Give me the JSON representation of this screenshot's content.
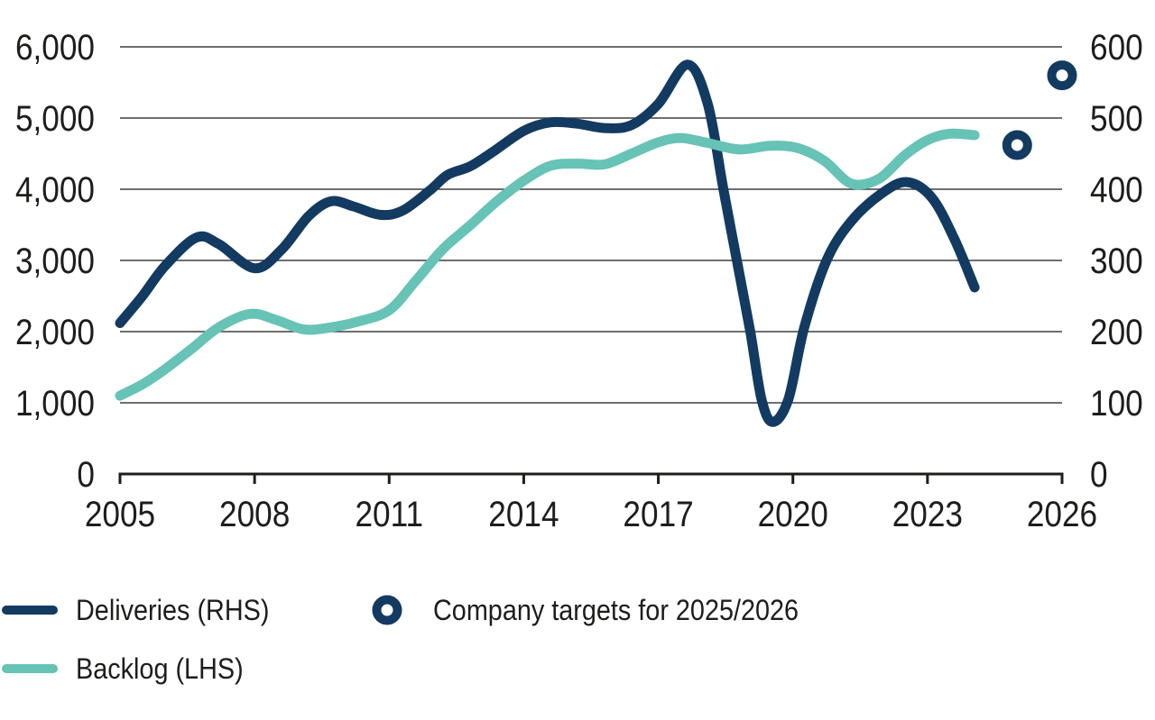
{
  "chart_data": {
    "type": "line",
    "title": "",
    "x_axis": {
      "min": 2005,
      "max": 2026,
      "ticks": [
        2005,
        2008,
        2011,
        2014,
        2017,
        2020,
        2023,
        2026
      ],
      "tick_labels": [
        "2005",
        "2008",
        "2011",
        "2014",
        "2017",
        "2020",
        "2023",
        "2026"
      ]
    },
    "left_axis": {
      "min": 0,
      "max": 6000,
      "tick_values": [
        0,
        1000,
        2000,
        3000,
        4000,
        5000,
        6000
      ],
      "tick_labels": [
        "0",
        "1,000",
        "2,000",
        "3,000",
        "4,000",
        "5,000",
        "6,000"
      ]
    },
    "right_axis": {
      "min": 0,
      "max": 600,
      "tick_values": [
        0,
        100,
        200,
        300,
        400,
        500,
        600
      ],
      "tick_labels": [
        "0",
        "100",
        "200",
        "300",
        "400",
        "500",
        "600"
      ]
    },
    "grid": true,
    "legend_position": "bottom-left",
    "series": [
      {
        "name": "Deliveries (RHS)",
        "axis": "right",
        "color": "#133a61",
        "points": [
          [
            2005,
            212
          ],
          [
            2005.5,
            250
          ],
          [
            2006,
            292
          ],
          [
            2006.7,
            332
          ],
          [
            2007.2,
            323
          ],
          [
            2008,
            289
          ],
          [
            2008.6,
            315
          ],
          [
            2009.2,
            362
          ],
          [
            2009.7,
            383
          ],
          [
            2010.2,
            376
          ],
          [
            2010.8,
            364
          ],
          [
            2011.3,
            370
          ],
          [
            2011.9,
            398
          ],
          [
            2012.3,
            420
          ],
          [
            2012.8,
            432
          ],
          [
            2013.3,
            452
          ],
          [
            2014,
            482
          ],
          [
            2014.6,
            494
          ],
          [
            2015.2,
            492
          ],
          [
            2015.8,
            486
          ],
          [
            2016.4,
            490
          ],
          [
            2017,
            520
          ],
          [
            2017.65,
            575
          ],
          [
            2018.1,
            520
          ],
          [
            2018.45,
            400
          ],
          [
            2018.75,
            300
          ],
          [
            2019.05,
            200
          ],
          [
            2019.3,
            105
          ],
          [
            2019.55,
            73
          ],
          [
            2019.9,
            105
          ],
          [
            2020.25,
            205
          ],
          [
            2020.75,
            300
          ],
          [
            2021.3,
            355
          ],
          [
            2022,
            395
          ],
          [
            2022.55,
            410
          ],
          [
            2023.1,
            388
          ],
          [
            2023.6,
            330
          ],
          [
            2024.05,
            262
          ]
        ]
      },
      {
        "name": "Backlog (LHS)",
        "axis": "left",
        "color": "#66c3b5",
        "points": [
          [
            2005,
            1100
          ],
          [
            2005.5,
            1260
          ],
          [
            2006,
            1470
          ],
          [
            2006.6,
            1760
          ],
          [
            2007.2,
            2060
          ],
          [
            2007.9,
            2250
          ],
          [
            2008.5,
            2160
          ],
          [
            2009.1,
            2030
          ],
          [
            2009.7,
            2060
          ],
          [
            2010.3,
            2140
          ],
          [
            2011,
            2300
          ],
          [
            2011.6,
            2720
          ],
          [
            2012.2,
            3160
          ],
          [
            2012.8,
            3490
          ],
          [
            2013.4,
            3830
          ],
          [
            2014,
            4120
          ],
          [
            2014.6,
            4330
          ],
          [
            2015.2,
            4360
          ],
          [
            2015.8,
            4350
          ],
          [
            2016.4,
            4500
          ],
          [
            2017,
            4660
          ],
          [
            2017.5,
            4720
          ],
          [
            2018.1,
            4650
          ],
          [
            2018.8,
            4560
          ],
          [
            2019.5,
            4610
          ],
          [
            2020.1,
            4580
          ],
          [
            2020.7,
            4400
          ],
          [
            2021.3,
            4080
          ],
          [
            2021.9,
            4140
          ],
          [
            2022.5,
            4480
          ],
          [
            2023,
            4690
          ],
          [
            2023.5,
            4780
          ],
          [
            2024.05,
            4760
          ]
        ]
      }
    ],
    "targets": {
      "name": "Company targets for 2025/2026",
      "axis": "right",
      "color": "#133a61",
      "points": [
        [
          2025,
          462
        ],
        [
          2026,
          560
        ]
      ]
    }
  },
  "legend": {
    "items": [
      {
        "label": "Deliveries (RHS)",
        "swatch": "line",
        "color": "#133a61"
      },
      {
        "label": "Backlog (LHS)",
        "swatch": "line",
        "color": "#66c3b5"
      },
      {
        "label": "Company targets for 2025/2026",
        "swatch": "circle",
        "color": "#133a61"
      }
    ]
  },
  "colors": {
    "navy": "#133a61",
    "teal": "#66c3b5",
    "grid": "#3f3f3f",
    "axis": "#1d1d1b",
    "text": "#1d1d1b",
    "background": "#ffffff"
  }
}
